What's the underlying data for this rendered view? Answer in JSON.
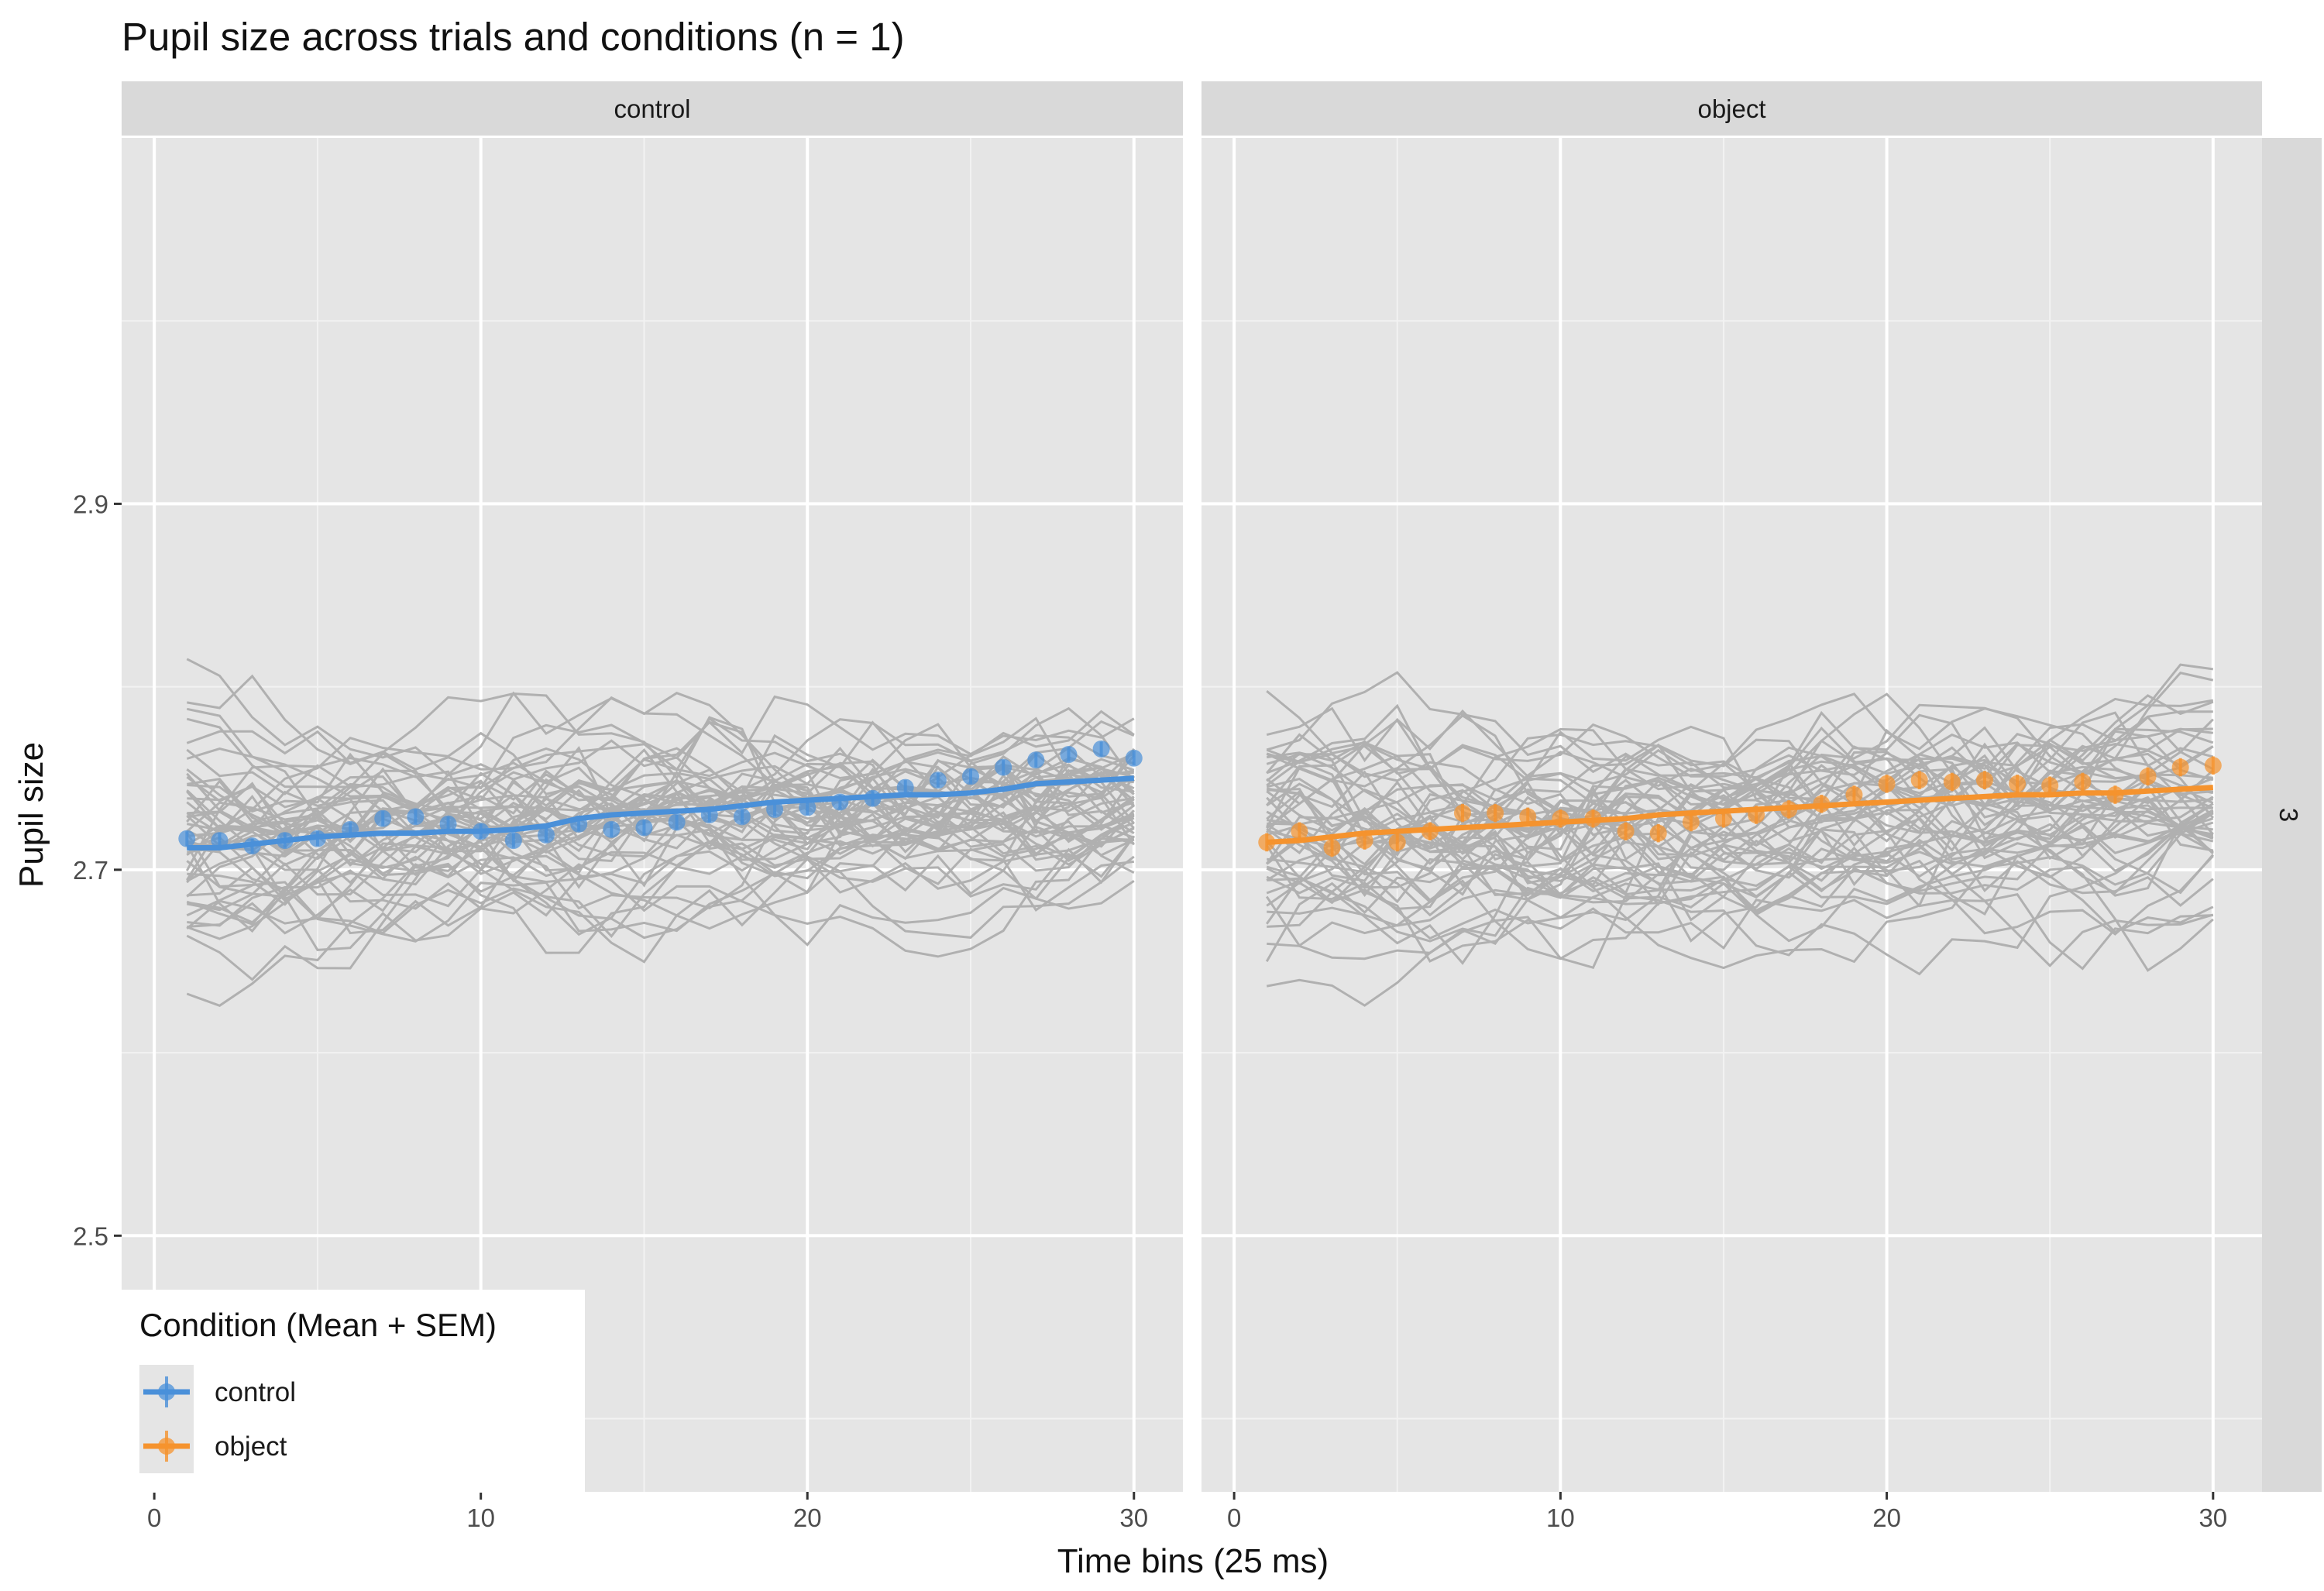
{
  "chart_data": {
    "type": "line",
    "title": "Pupil size across trials and conditions (n = 1)",
    "xlabel": "Time bins (25 ms)",
    "ylabel": "Pupil size",
    "xlim": [
      -1.0,
      31.5
    ],
    "ylim": [
      2.36,
      3.1
    ],
    "x_ticks": [
      0,
      10,
      20,
      30
    ],
    "y_ticks": [
      2.5,
      2.7,
      2.9
    ],
    "grid": true,
    "facet_row_label": "3",
    "legend": {
      "title": "Condition (Mean + SEM)",
      "placement": "bottom-left",
      "entries": [
        {
          "label": "control",
          "color": "#4a90d9"
        },
        {
          "label": "object",
          "color": "#f5932e"
        }
      ]
    },
    "panels": [
      {
        "strip": "control",
        "color": "#4a90d9",
        "mean": [
          2.717,
          2.716,
          2.713,
          2.716,
          2.717,
          2.722,
          2.728,
          2.729,
          2.725,
          2.721,
          2.716,
          2.719,
          2.725,
          2.722,
          2.723,
          2.726,
          2.73,
          2.729,
          2.733,
          2.734,
          2.737,
          2.739,
          2.745,
          2.749,
          2.751,
          2.756,
          2.76,
          2.763,
          2.766,
          2.761
        ],
        "fit": [
          2.712,
          2.712,
          2.714,
          2.716,
          2.718,
          2.719,
          2.72,
          2.72,
          2.721,
          2.721,
          2.722,
          2.724,
          2.728,
          2.73,
          2.731,
          2.732,
          2.733,
          2.735,
          2.737,
          2.738,
          2.739,
          2.74,
          2.741,
          2.741,
          2.742,
          2.744,
          2.747,
          2.748,
          2.749,
          2.75
        ],
        "sem": 0.004
      },
      {
        "strip": "object",
        "color": "#f5932e",
        "mean": [
          2.715,
          2.721,
          2.712,
          2.716,
          2.715,
          2.721,
          2.731,
          2.731,
          2.729,
          2.728,
          2.728,
          2.721,
          2.72,
          2.726,
          2.728,
          2.73,
          2.733,
          2.736,
          2.741,
          2.747,
          2.749,
          2.748,
          2.749,
          2.747,
          2.746,
          2.748,
          2.741,
          2.751,
          2.756,
          2.757
        ],
        "fit": [
          2.715,
          2.716,
          2.718,
          2.72,
          2.721,
          2.722,
          2.723,
          2.724,
          2.725,
          2.726,
          2.727,
          2.728,
          2.73,
          2.731,
          2.732,
          2.733,
          2.734,
          2.735,
          2.736,
          2.737,
          2.738,
          2.739,
          2.74,
          2.741,
          2.741,
          2.742,
          2.742,
          2.743,
          2.744,
          2.745
        ],
        "sem": 0.005
      }
    ]
  }
}
